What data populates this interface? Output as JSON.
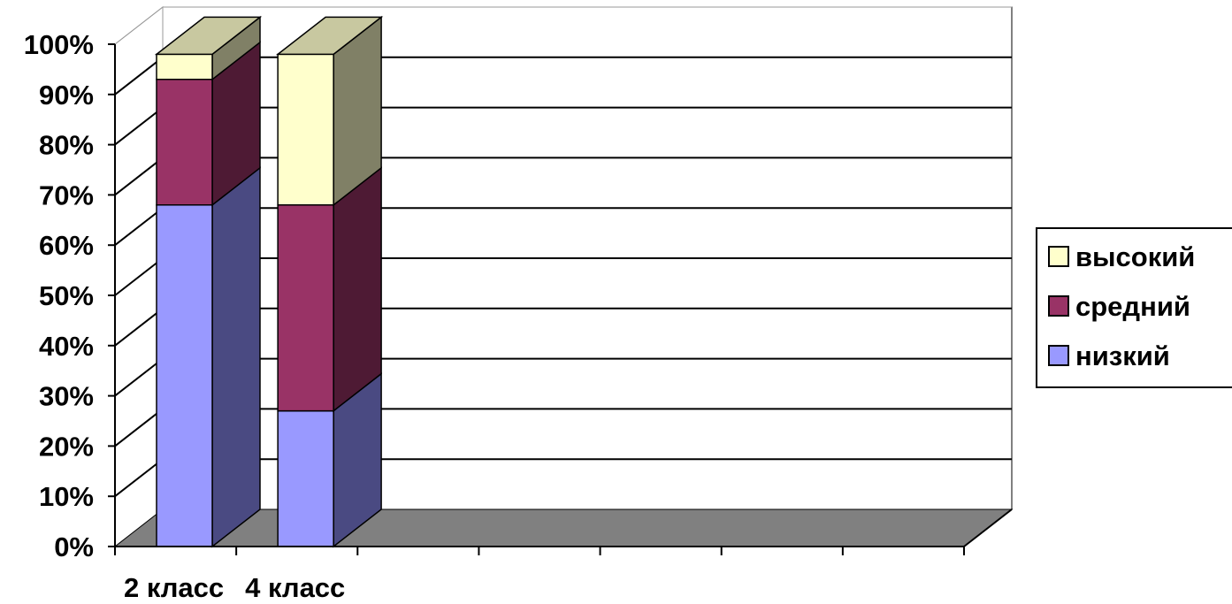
{
  "chart_data": {
    "type": "bar",
    "stacked": true,
    "percent": true,
    "three_d": true,
    "categories": [
      "2 класс",
      "4 класс",
      "",
      "",
      "",
      "",
      ""
    ],
    "series": [
      {
        "name": "низкий",
        "values": [
          68,
          27,
          0,
          0,
          0,
          0,
          0
        ],
        "color": "#9999FF",
        "side_color": "#4A4A82",
        "top_color": "#7777CC"
      },
      {
        "name": "средний",
        "values": [
          25,
          41,
          0,
          0,
          0,
          0,
          0
        ],
        "color": "#993366",
        "side_color": "#4E1A34",
        "top_color": "#7A2A52"
      },
      {
        "name": "высокий",
        "values": [
          5,
          30,
          0,
          0,
          0,
          0,
          0
        ],
        "color": "#FFFFCC",
        "side_color": "#808066",
        "top_color": "#C8C8A0"
      }
    ],
    "y_ticks": [
      "0%",
      "10%",
      "20%",
      "30%",
      "40%",
      "50%",
      "60%",
      "70%",
      "80%",
      "90%",
      "100%"
    ],
    "ylim": [
      0,
      100
    ],
    "grid": true,
    "legend_position": "right",
    "floor_color": "#808080",
    "wall_color": "#ffffff",
    "grid_color": "#000000"
  }
}
